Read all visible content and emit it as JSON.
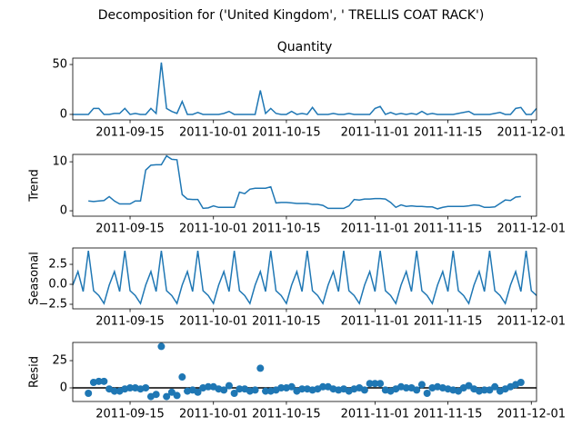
{
  "title": "Decomposition for ('United Kingdom', ' TRELLIS COAT RACK')",
  "chart_data": {
    "type": "decomposition",
    "x": [
      "2011-09-04",
      "2011-09-05",
      "2011-09-06",
      "2011-09-07",
      "2011-09-08",
      "2011-09-09",
      "2011-09-10",
      "2011-09-11",
      "2011-09-12",
      "2011-09-13",
      "2011-09-14",
      "2011-09-15",
      "2011-09-16",
      "2011-09-17",
      "2011-09-18",
      "2011-09-19",
      "2011-09-20",
      "2011-09-21",
      "2011-09-22",
      "2011-09-23",
      "2011-09-24",
      "2011-09-25",
      "2011-09-26",
      "2011-09-27",
      "2011-09-28",
      "2011-09-29",
      "2011-09-30",
      "2011-10-01",
      "2011-10-02",
      "2011-10-03",
      "2011-10-04",
      "2011-10-05",
      "2011-10-06",
      "2011-10-07",
      "2011-10-08",
      "2011-10-09",
      "2011-10-10",
      "2011-10-11",
      "2011-10-12",
      "2011-10-13",
      "2011-10-14",
      "2011-10-15",
      "2011-10-16",
      "2011-10-17",
      "2011-10-18",
      "2011-10-19",
      "2011-10-20",
      "2011-10-21",
      "2011-10-22",
      "2011-10-23",
      "2011-10-24",
      "2011-10-25",
      "2011-10-26",
      "2011-10-27",
      "2011-10-28",
      "2011-10-29",
      "2011-10-30",
      "2011-10-31",
      "2011-11-01",
      "2011-11-02",
      "2011-11-03",
      "2011-11-04",
      "2011-11-05",
      "2011-11-06",
      "2011-11-07",
      "2011-11-08",
      "2011-11-09",
      "2011-11-10",
      "2011-11-11",
      "2011-11-12",
      "2011-11-13",
      "2011-11-14",
      "2011-11-15",
      "2011-11-16",
      "2011-11-17",
      "2011-11-18",
      "2011-11-19",
      "2011-11-20",
      "2011-11-21",
      "2011-11-22",
      "2011-11-23",
      "2011-11-24",
      "2011-11-25",
      "2011-11-26",
      "2011-11-27",
      "2011-11-28",
      "2011-11-29",
      "2011-11-30",
      "2011-12-01",
      "2011-12-02"
    ],
    "xlim": [
      "2011-09-04",
      "2011-12-02"
    ],
    "xticks": [
      "2011-09-15",
      "2011-10-01",
      "2011-10-15",
      "2011-11-01",
      "2011-11-15",
      "2011-12-01"
    ],
    "panels": [
      {
        "type": "line",
        "title": "Quantity",
        "color": "#1f77b4",
        "ylim": [
          -5.5,
          56.4
        ],
        "yticks": [
          0,
          50
        ],
        "values": [
          0,
          0,
          0,
          0,
          6,
          6,
          0,
          0,
          1,
          1,
          6,
          0,
          1,
          0,
          0,
          6,
          1,
          52,
          6,
          3,
          1,
          13,
          0,
          0,
          2,
          0,
          0,
          0,
          0,
          1,
          3,
          0,
          0,
          0,
          0,
          0,
          24,
          1,
          6,
          1,
          0,
          0,
          3,
          0,
          1,
          0,
          7,
          0,
          0,
          0,
          1,
          0,
          0,
          1,
          0,
          0,
          0,
          0,
          6,
          8,
          0,
          2,
          0,
          1,
          0,
          1,
          0,
          3,
          0,
          1,
          0,
          0,
          0,
          0,
          1,
          2,
          3,
          0,
          0,
          0,
          0,
          1,
          2,
          0,
          0,
          6,
          7,
          0,
          0,
          6
        ]
      },
      {
        "type": "line",
        "ylabel": "Trend",
        "color": "#1f77b4",
        "ylim": [
          -1.1,
          11.5
        ],
        "yticks": [
          0,
          10
        ],
        "values": [
          null,
          null,
          null,
          2,
          1.9,
          2,
          2.1,
          2.9,
          2,
          1.4,
          1.4,
          1.4,
          2,
          2,
          8.3,
          9.3,
          9.4,
          9.4,
          11.2,
          10.5,
          10.4,
          3.3,
          2.4,
          2.3,
          2.3,
          0.5,
          0.6,
          1,
          0.7,
          0.7,
          0.7,
          0.7,
          3.8,
          3.5,
          4.4,
          4.6,
          4.6,
          4.6,
          4.9,
          1.6,
          1.7,
          1.7,
          1.6,
          1.5,
          1.5,
          1.5,
          1.3,
          1.3,
          1.1,
          0.5,
          0.5,
          0.5,
          0.5,
          1,
          2.3,
          2.2,
          2.4,
          2.4,
          2.5,
          2.5,
          2.4,
          1.7,
          0.7,
          1.2,
          0.9,
          1,
          0.9,
          0.9,
          0.8,
          0.8,
          0.4,
          0.7,
          0.9,
          0.9,
          0.9,
          0.9,
          1,
          1.2,
          1.1,
          0.7,
          0.7,
          0.8,
          1.5,
          2.2,
          2.1,
          2.8,
          2.9,
          null,
          null,
          null
        ]
      },
      {
        "type": "line",
        "ylabel": "Seasonal",
        "color": "#1f77b4",
        "ylim": [
          -3.07,
          4.55
        ],
        "yticks": [
          {
            "value": -2.5,
            "label": "−2.5"
          },
          {
            "value": 0,
            "label": "0.0"
          },
          2.5
        ],
        "values": [
          -0.1,
          1.6,
          -0.9,
          4.2,
          -0.8,
          -1.4,
          -2.4,
          -0.1,
          1.6,
          -0.9,
          4.2,
          -0.8,
          -1.4,
          -2.4,
          -0.1,
          1.6,
          -0.9,
          4.2,
          -0.8,
          -1.4,
          -2.4,
          -0.1,
          1.6,
          -0.9,
          4.2,
          -0.8,
          -1.4,
          -2.4,
          -0.1,
          1.6,
          -0.9,
          4.2,
          -0.8,
          -1.4,
          -2.4,
          -0.1,
          1.6,
          -0.9,
          4.2,
          -0.8,
          -1.4,
          -2.4,
          -0.1,
          1.6,
          -0.9,
          4.2,
          -0.8,
          -1.4,
          -2.4,
          -0.1,
          1.6,
          -0.9,
          4.2,
          -0.8,
          -1.4,
          -2.4,
          -0.1,
          1.6,
          -0.9,
          4.2,
          -0.8,
          -1.4,
          -2.4,
          -0.1,
          1.6,
          -0.9,
          4.2,
          -0.8,
          -1.4,
          -2.4,
          -0.1,
          1.6,
          -0.9,
          4.2,
          -0.8,
          -1.4,
          -2.4,
          -0.1,
          1.6,
          -0.9,
          4.2,
          -0.8,
          -1.4,
          -2.4,
          -0.1,
          1.6,
          -0.9,
          4.2,
          -0.8,
          -1.4
        ]
      },
      {
        "type": "scatter",
        "ylabel": "Resid",
        "color": "#1f77b4",
        "ylim": [
          -12.5,
          41.7
        ],
        "yticks": [
          0,
          25
        ],
        "baseline": 0,
        "values": [
          null,
          null,
          null,
          -5,
          5,
          6,
          6,
          -1,
          -3,
          -3,
          -1,
          0,
          0,
          -1,
          0,
          -8,
          -6,
          38,
          -8,
          -4,
          -7,
          10,
          -3,
          -2,
          -4,
          0,
          1,
          1,
          -1,
          -2,
          2,
          -5,
          -1,
          -1,
          -3,
          -2,
          18,
          -3,
          -3,
          -2,
          0,
          0,
          1,
          -3,
          -1,
          -1,
          -2,
          -1,
          1,
          1,
          -1,
          -2,
          -1,
          -3,
          -1,
          0,
          -2,
          4,
          4,
          4,
          -2,
          -3,
          -1,
          1,
          0,
          0,
          -2,
          3,
          -5,
          0,
          1,
          0,
          -1,
          -2,
          -3,
          0,
          2,
          -1,
          -3,
          -2,
          -2,
          1,
          -3,
          -1,
          1,
          3,
          5,
          null,
          null,
          null
        ]
      }
    ]
  }
}
